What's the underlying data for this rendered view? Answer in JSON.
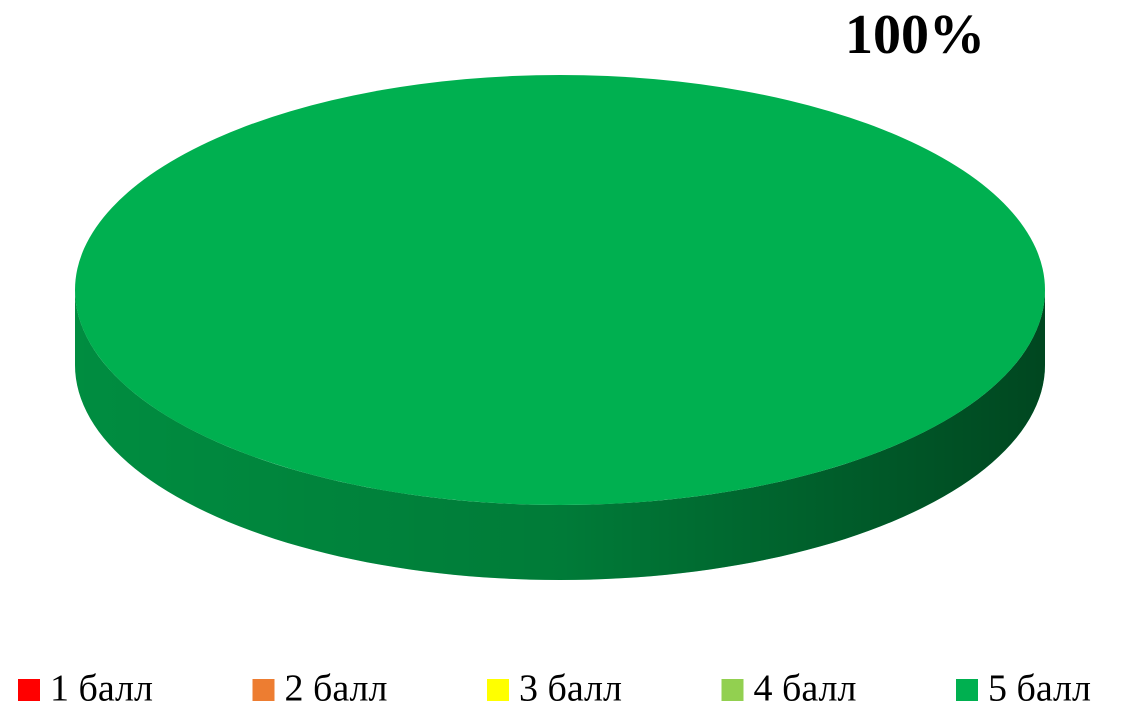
{
  "chart_data": {
    "type": "pie",
    "categories": [
      "1 балл",
      "2 балл",
      "3 балл",
      "4 балл",
      "5 балл"
    ],
    "values": [
      0,
      0,
      0,
      0,
      100
    ],
    "value_labels": [
      null,
      null,
      null,
      null,
      "100%"
    ],
    "colors": [
      "#ff0000",
      "#ed7d31",
      "#ffff00",
      "#92d050",
      "#00b050"
    ],
    "legend": "bottom"
  }
}
